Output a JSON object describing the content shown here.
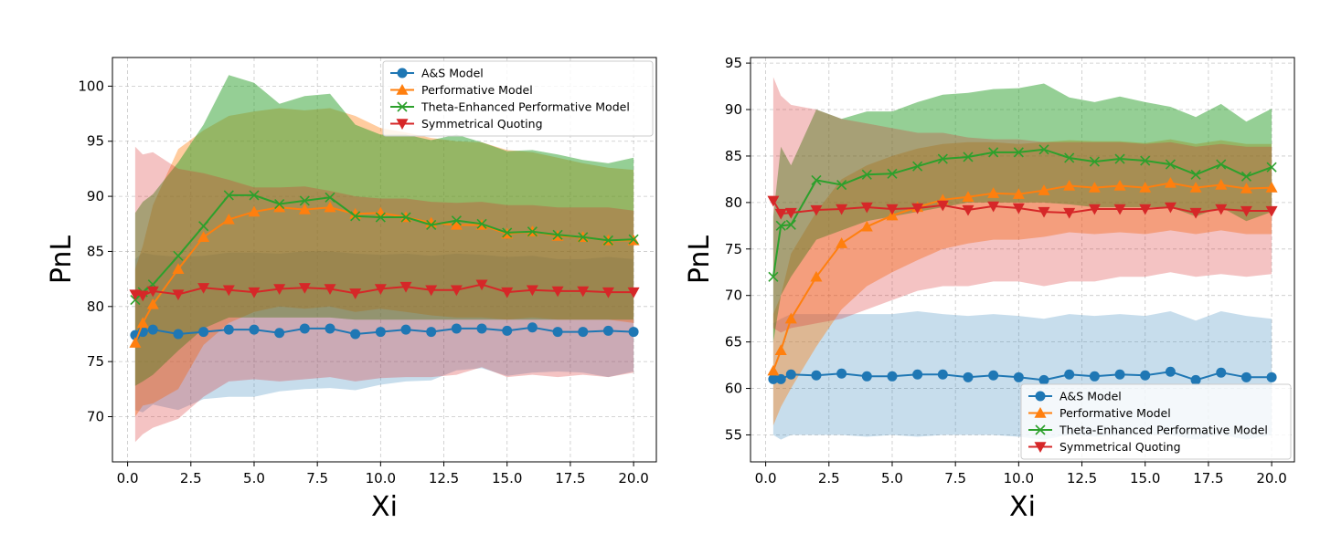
{
  "figure": {
    "background": "#ffffff"
  },
  "chart_data": [
    {
      "type": "line",
      "xlabel": "Xi",
      "ylabel": "PnL",
      "xlim": [
        -0.6,
        20.9
      ],
      "ylim": [
        65.9,
        102.6
      ],
      "xticks": [
        0.0,
        2.5,
        5.0,
        7.5,
        10.0,
        12.5,
        15.0,
        17.5,
        20.0
      ],
      "xtick_labels": [
        "0.0",
        "2.5",
        "5.0",
        "7.5",
        "10.0",
        "12.5",
        "15.0",
        "17.5",
        "20.0"
      ],
      "yticks": [
        70,
        75,
        80,
        85,
        90,
        95,
        100
      ],
      "ytick_labels": [
        "70",
        "75",
        "80",
        "85",
        "90",
        "95",
        "100"
      ],
      "grid": true,
      "legend": "top-right",
      "x": [
        0.3,
        0.6,
        1,
        2,
        3,
        4,
        5,
        6,
        7,
        8,
        9,
        10,
        11,
        12,
        13,
        14,
        15,
        16,
        17,
        18,
        19,
        20
      ],
      "series": [
        {
          "name": "A&S Model",
          "color": "#1f77b4",
          "marker": "circle",
          "values": [
            77.4,
            77.7,
            77.9,
            77.5,
            77.7,
            77.9,
            77.9,
            77.6,
            78.0,
            78.0,
            77.5,
            77.7,
            77.9,
            77.7,
            78.0,
            78.0,
            77.8,
            78.1,
            77.7,
            77.7,
            77.8,
            77.7
          ],
          "band_low": [
            70.6,
            70.4,
            71.1,
            70.6,
            71.6,
            71.8,
            71.8,
            72.3,
            72.5,
            72.6,
            72.4,
            72.9,
            73.2,
            73.3,
            74.2,
            74.4,
            73.7,
            74.0,
            74.1,
            74.0,
            73.6,
            74.1
          ],
          "band_high": [
            84.3,
            84.9,
            84.7,
            84.5,
            84.6,
            84.9,
            84.9,
            84.8,
            85.0,
            85.0,
            84.8,
            84.7,
            84.8,
            84.6,
            84.8,
            84.7,
            84.5,
            84.6,
            84.3,
            84.3,
            84.5,
            84.3
          ]
        },
        {
          "name": "Performative Model",
          "color": "#ff7f0e",
          "marker": "triangle-up",
          "values": [
            76.7,
            78.5,
            80.2,
            83.4,
            86.3,
            87.9,
            88.6,
            89.0,
            88.8,
            89.0,
            88.4,
            88.5,
            88.1,
            87.6,
            87.4,
            87.4,
            86.6,
            86.8,
            86.4,
            86.3,
            86.0,
            86.0
          ],
          "band_low": [
            70.0,
            71.0,
            71.2,
            72.5,
            76.5,
            78.5,
            79.5,
            80.0,
            79.8,
            80.0,
            79.5,
            79.8,
            79.5,
            79.2,
            79.0,
            79.0,
            78.8,
            79.0,
            78.8,
            78.8,
            78.8,
            78.5
          ],
          "band_high": [
            83.4,
            85.5,
            89.2,
            94.3,
            96.0,
            97.3,
            97.7,
            98.0,
            97.8,
            98.0,
            97.3,
            96.2,
            95.8,
            95.3,
            95.0,
            94.9,
            94.2,
            94.0,
            93.5,
            93.0,
            92.6,
            92.4
          ]
        },
        {
          "name": "Theta-Enhanced Performative Model",
          "color": "#2ca02c",
          "marker": "x",
          "values": [
            80.6,
            81.3,
            82.0,
            84.6,
            87.3,
            90.1,
            90.1,
            89.3,
            89.6,
            89.9,
            88.2,
            88.1,
            88.1,
            87.4,
            87.8,
            87.5,
            86.7,
            86.8,
            86.5,
            86.3,
            86.0,
            86.1
          ],
          "band_low": [
            72.8,
            73.2,
            73.8,
            76.0,
            78.0,
            79.0,
            79.0,
            79.0,
            79.0,
            79.0,
            78.8,
            78.8,
            78.8,
            78.8,
            78.8,
            78.8,
            78.8,
            78.8,
            78.8,
            78.8,
            78.8,
            78.8
          ],
          "band_high": [
            88.5,
            89.5,
            90.2,
            93.1,
            96.5,
            101.0,
            100.3,
            98.4,
            99.1,
            99.3,
            96.5,
            95.6,
            95.6,
            95.1,
            95.6,
            94.9,
            94.1,
            94.2,
            93.8,
            93.3,
            93.0,
            93.5
          ]
        },
        {
          "name": "Symmetrical Quoting",
          "color": "#d62728",
          "marker": "triangle-down",
          "values": [
            81.1,
            81.0,
            81.4,
            81.1,
            81.7,
            81.5,
            81.3,
            81.6,
            81.7,
            81.6,
            81.2,
            81.6,
            81.8,
            81.5,
            81.5,
            82.0,
            81.3,
            81.5,
            81.4,
            81.4,
            81.3,
            81.3
          ],
          "band_low": [
            67.7,
            68.4,
            69.0,
            69.8,
            71.8,
            73.2,
            73.4,
            73.2,
            73.4,
            73.6,
            73.2,
            73.5,
            73.6,
            73.6,
            73.8,
            74.5,
            73.6,
            73.8,
            73.6,
            73.8,
            73.6,
            74.0
          ],
          "band_high": [
            94.5,
            93.8,
            94.0,
            92.5,
            92.1,
            91.5,
            90.8,
            90.8,
            90.9,
            90.5,
            90.0,
            89.8,
            89.8,
            89.5,
            89.4,
            89.5,
            89.2,
            89.2,
            89.0,
            89.0,
            89.0,
            88.7
          ]
        }
      ]
    },
    {
      "type": "line",
      "xlabel": "Xi",
      "ylabel": "PnL",
      "xlim": [
        -0.6,
        20.9
      ],
      "ylim": [
        52.1,
        95.6
      ],
      "xticks": [
        0.0,
        2.5,
        5.0,
        7.5,
        10.0,
        12.5,
        15.0,
        17.5,
        20.0
      ],
      "xtick_labels": [
        "0.0",
        "2.5",
        "5.0",
        "7.5",
        "10.0",
        "12.5",
        "15.0",
        "17.5",
        "20.0"
      ],
      "yticks": [
        55,
        60,
        65,
        70,
        75,
        80,
        85,
        90,
        95
      ],
      "ytick_labels": [
        "55",
        "60",
        "65",
        "70",
        "75",
        "80",
        "85",
        "90",
        "95"
      ],
      "grid": true,
      "legend": "bottom-right",
      "x": [
        0.3,
        0.6,
        1,
        2,
        3,
        4,
        5,
        6,
        7,
        8,
        9,
        10,
        11,
        12,
        13,
        14,
        15,
        16,
        17,
        18,
        19,
        20
      ],
      "series": [
        {
          "name": "A&S Model",
          "color": "#1f77b4",
          "marker": "circle",
          "values": [
            61.0,
            61.0,
            61.5,
            61.4,
            61.6,
            61.3,
            61.3,
            61.5,
            61.5,
            61.2,
            61.4,
            61.2,
            60.9,
            61.5,
            61.3,
            61.5,
            61.4,
            61.8,
            60.9,
            61.7,
            61.2,
            61.2
          ],
          "band_low": [
            55.0,
            54.5,
            55.0,
            55.0,
            55.0,
            54.8,
            55.0,
            54.8,
            55.0,
            55.0,
            55.0,
            54.8,
            54.5,
            55.0,
            54.8,
            55.0,
            55.0,
            55.0,
            54.5,
            55.0,
            54.5,
            55.0
          ],
          "band_high": [
            67.0,
            67.5,
            68.0,
            68.0,
            68.0,
            68.0,
            68.0,
            68.3,
            68.0,
            67.8,
            68.0,
            67.8,
            67.5,
            68.0,
            67.8,
            68.0,
            67.8,
            68.3,
            67.3,
            68.3,
            67.8,
            67.5
          ]
        },
        {
          "name": "Performative Model",
          "color": "#ff7f0e",
          "marker": "triangle-up",
          "values": [
            61.9,
            64.1,
            67.5,
            72.0,
            75.6,
            77.4,
            78.6,
            79.5,
            80.3,
            80.6,
            81.0,
            80.9,
            81.3,
            81.8,
            81.6,
            81.8,
            81.6,
            82.1,
            81.6,
            81.9,
            81.5,
            81.6
          ],
          "band_low": [
            56.0,
            58.0,
            60.0,
            64.5,
            68.5,
            71.0,
            72.5,
            73.8,
            75.0,
            75.6,
            76.0,
            76.0,
            76.3,
            76.8,
            76.6,
            76.8,
            76.6,
            77.0,
            76.6,
            77.0,
            76.6,
            76.6
          ],
          "band_high": [
            68.0,
            70.0,
            74.5,
            79.0,
            82.5,
            84.0,
            85.0,
            85.8,
            86.3,
            86.5,
            86.5,
            86.3,
            86.5,
            86.7,
            86.6,
            86.6,
            86.4,
            86.8,
            86.3,
            86.7,
            86.3,
            86.3
          ]
        },
        {
          "name": "Theta-Enhanced Performative Model",
          "color": "#2ca02c",
          "marker": "x",
          "values": [
            72.0,
            77.5,
            77.6,
            82.4,
            81.9,
            83.0,
            83.1,
            83.9,
            84.7,
            84.9,
            85.4,
            85.4,
            85.7,
            84.8,
            84.4,
            84.7,
            84.5,
            84.1,
            83.0,
            84.1,
            82.8,
            83.8
          ],
          "band_low": [
            65.0,
            70.0,
            72.0,
            76.0,
            77.0,
            78.0,
            78.5,
            79.0,
            79.5,
            80.0,
            80.0,
            80.0,
            80.0,
            79.8,
            79.5,
            79.5,
            79.5,
            79.5,
            78.5,
            79.5,
            78.0,
            79.0
          ],
          "band_high": [
            78.5,
            86.0,
            84.0,
            90.0,
            89.0,
            89.8,
            89.8,
            90.8,
            91.6,
            91.8,
            92.2,
            92.3,
            92.8,
            91.3,
            90.8,
            91.4,
            90.8,
            90.3,
            89.2,
            90.6,
            88.7,
            90.1
          ]
        },
        {
          "name": "Symmetrical Quoting",
          "color": "#d62728",
          "marker": "triangle-down",
          "values": [
            80.2,
            78.8,
            78.9,
            79.2,
            79.3,
            79.5,
            79.3,
            79.4,
            79.7,
            79.2,
            79.6,
            79.4,
            79.0,
            78.9,
            79.3,
            79.3,
            79.3,
            79.5,
            78.9,
            79.3,
            79.1,
            79.1
          ],
          "band_low": [
            66.5,
            66.0,
            66.5,
            67.0,
            67.5,
            68.5,
            69.5,
            70.5,
            71.0,
            71.0,
            71.5,
            71.5,
            71.0,
            71.5,
            71.5,
            72.0,
            72.0,
            72.5,
            72.0,
            72.3,
            72.0,
            72.3
          ],
          "band_high": [
            93.5,
            91.5,
            90.5,
            90.0,
            89.0,
            88.5,
            88.0,
            87.5,
            87.5,
            87.0,
            86.8,
            86.8,
            86.5,
            86.5,
            86.5,
            86.5,
            86.3,
            86.5,
            86.0,
            86.3,
            86.0,
            86.0
          ]
        }
      ]
    }
  ]
}
